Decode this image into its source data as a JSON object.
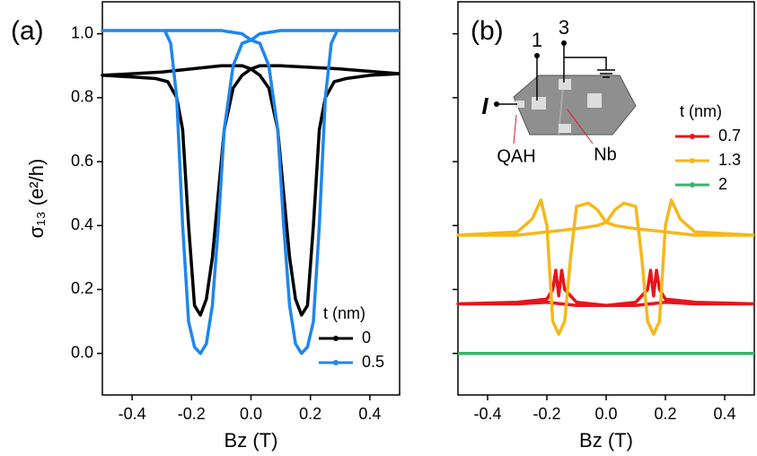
{
  "chart_data": [
    {
      "type": "line",
      "panel_label": "(a)",
      "y_label": "σ₁₃ (e²/h)",
      "x_label": "Bz (T)",
      "xlim": [
        -0.5,
        0.5
      ],
      "ylim": [
        -0.13,
        1.1
      ],
      "xticks": [
        -0.4,
        -0.2,
        {
          "value": 0,
          "label": "0.0"
        },
        0.2,
        0.4
      ],
      "yticks": [
        {
          "value": 0,
          "label": "0.0"
        },
        0.2,
        0.4,
        0.6,
        0.8,
        {
          "value": 1,
          "label": "1.0"
        }
      ],
      "legend_title": "t (nm)",
      "series": [
        {
          "name": "0",
          "color": "#000000",
          "x": [
            0.5,
            0.3,
            0.1,
            0.03,
            0.0,
            -0.03,
            -0.06,
            -0.09,
            -0.11,
            -0.13,
            -0.15,
            -0.17,
            -0.19,
            -0.21,
            -0.23,
            -0.25,
            -0.28,
            -0.32,
            -0.4,
            -0.5,
            -0.5,
            -0.3,
            -0.1,
            -0.03,
            0.0,
            0.03,
            0.06,
            0.09,
            0.11,
            0.13,
            0.15,
            0.17,
            0.19,
            0.21,
            0.23,
            0.25,
            0.28,
            0.32,
            0.4,
            0.5
          ],
          "values": [
            0.875,
            0.89,
            0.9,
            0.9,
            0.89,
            0.87,
            0.83,
            0.7,
            0.5,
            0.3,
            0.17,
            0.12,
            0.15,
            0.4,
            0.7,
            0.8,
            0.85,
            0.86,
            0.865,
            0.87,
            0.87,
            0.88,
            0.9,
            0.9,
            0.89,
            0.87,
            0.83,
            0.7,
            0.5,
            0.3,
            0.17,
            0.12,
            0.15,
            0.4,
            0.7,
            0.8,
            0.85,
            0.86,
            0.87,
            0.875
          ]
        },
        {
          "name": "0.5",
          "color": "#1e86ee",
          "x": [
            0.5,
            0.1,
            0.03,
            0.0,
            -0.03,
            -0.06,
            -0.09,
            -0.11,
            -0.13,
            -0.15,
            -0.17,
            -0.19,
            -0.21,
            -0.23,
            -0.25,
            -0.27,
            -0.29,
            -0.5,
            -0.5,
            -0.1,
            -0.03,
            0.0,
            0.03,
            0.06,
            0.09,
            0.11,
            0.13,
            0.15,
            0.17,
            0.19,
            0.21,
            0.23,
            0.25,
            0.27,
            0.29,
            0.5
          ],
          "values": [
            1.01,
            1.01,
            1.0,
            0.98,
            0.97,
            0.9,
            0.7,
            0.4,
            0.15,
            0.03,
            0.0,
            0.02,
            0.1,
            0.4,
            0.8,
            0.97,
            1.01,
            1.01,
            1.01,
            1.01,
            1.0,
            0.98,
            0.97,
            0.9,
            0.7,
            0.4,
            0.15,
            0.03,
            0.0,
            0.02,
            0.1,
            0.4,
            0.8,
            0.97,
            1.01,
            1.01
          ]
        }
      ]
    },
    {
      "type": "line",
      "panel_label": "(b)",
      "x_label": "Bz (T)",
      "xlim": [
        -0.5,
        0.5
      ],
      "ylim": [
        -0.13,
        1.1
      ],
      "xticks": [
        -0.4,
        -0.2,
        {
          "value": 0,
          "label": "0.0"
        },
        0.2,
        0.4
      ],
      "yticks": [
        0,
        0.2,
        0.4,
        0.6,
        0.8,
        1
      ],
      "legend_title": "t (nm)",
      "annotations": [
        "1",
        "3",
        "I",
        "QAH",
        "Nb"
      ],
      "series": [
        {
          "name": "0.7",
          "color": "#e8141c",
          "x": [
            0.5,
            0.3,
            0.2,
            0.1,
            0.0,
            -0.1,
            -0.14,
            -0.15,
            -0.16,
            -0.17,
            -0.18,
            -0.2,
            -0.3,
            -0.5,
            -0.5,
            -0.3,
            -0.2,
            -0.1,
            0.0,
            0.1,
            0.14,
            0.15,
            0.16,
            0.17,
            0.18,
            0.2,
            0.3,
            0.5
          ],
          "values": [
            0.155,
            0.155,
            0.16,
            0.15,
            0.15,
            0.16,
            0.2,
            0.26,
            0.18,
            0.26,
            0.2,
            0.17,
            0.16,
            0.155,
            0.155,
            0.155,
            0.16,
            0.15,
            0.15,
            0.16,
            0.2,
            0.26,
            0.18,
            0.26,
            0.2,
            0.17,
            0.16,
            0.155
          ]
        },
        {
          "name": "1.3",
          "color": "#f5b81c",
          "x": [
            0.5,
            0.3,
            0.2,
            0.1,
            0.03,
            0.0,
            -0.03,
            -0.06,
            -0.1,
            -0.12,
            -0.14,
            -0.16,
            -0.18,
            -0.2,
            -0.22,
            -0.25,
            -0.3,
            -0.5,
            -0.5,
            -0.3,
            -0.2,
            -0.1,
            -0.03,
            0.0,
            0.03,
            0.06,
            0.1,
            0.12,
            0.14,
            0.16,
            0.18,
            0.2,
            0.22,
            0.25,
            0.3,
            0.5
          ],
          "values": [
            0.37,
            0.37,
            0.38,
            0.39,
            0.4,
            0.41,
            0.45,
            0.47,
            0.46,
            0.3,
            0.1,
            0.06,
            0.1,
            0.4,
            0.48,
            0.42,
            0.38,
            0.37,
            0.37,
            0.37,
            0.38,
            0.39,
            0.4,
            0.41,
            0.45,
            0.47,
            0.46,
            0.3,
            0.1,
            0.06,
            0.1,
            0.4,
            0.48,
            0.42,
            0.38,
            0.37
          ]
        },
        {
          "name": "2",
          "color": "#3bb36a",
          "x": [
            -0.5,
            0.5
          ],
          "values": [
            0.0,
            0.0
          ]
        }
      ]
    }
  ]
}
